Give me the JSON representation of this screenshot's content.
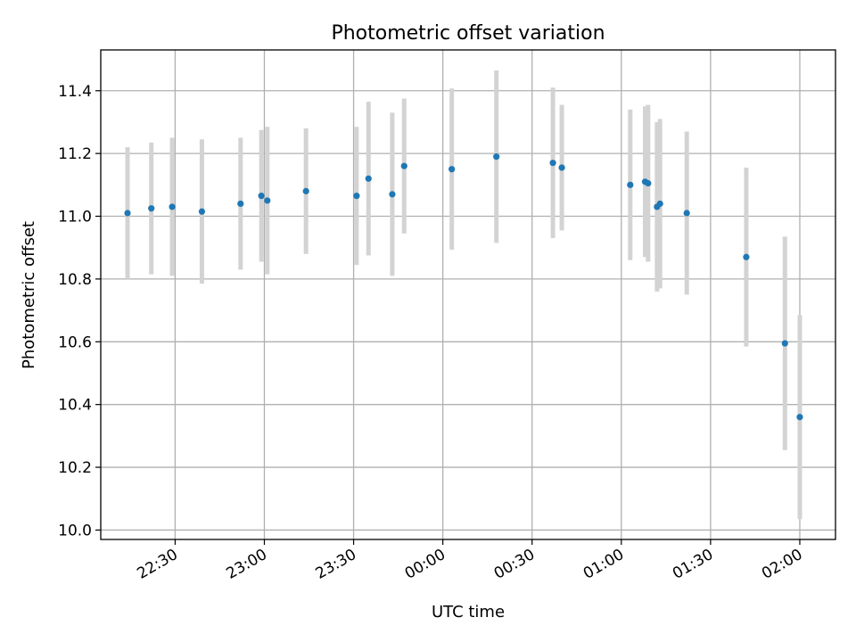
{
  "chart_data": {
    "type": "scatter",
    "title": "Photometric offset variation",
    "xlabel": "UTC time",
    "ylabel": "Photometric offset",
    "x_unit": "UTC time (HH:MM)",
    "xlim": [
      "22:05",
      "02:12"
    ],
    "ylim": [
      9.97,
      11.53
    ],
    "grid": true,
    "x_ticks": [
      "22:30",
      "23:00",
      "23:30",
      "00:00",
      "00:30",
      "01:00",
      "01:30",
      "02:00"
    ],
    "y_ticks": [
      "10.0",
      "10.2",
      "10.4",
      "10.6",
      "10.8",
      "11.0",
      "11.2",
      "11.4"
    ],
    "series": [
      {
        "marker_color": "#1f77b4",
        "errorbar_color": "#d3d3d3",
        "points": [
          {
            "x": "22:14",
            "y": 11.01,
            "err": 0.21
          },
          {
            "x": "22:22",
            "y": 11.025,
            "err": 0.21
          },
          {
            "x": "22:29",
            "y": 11.03,
            "err": 0.22
          },
          {
            "x": "22:39",
            "y": 11.015,
            "err": 0.23
          },
          {
            "x": "22:52",
            "y": 11.04,
            "err": 0.21
          },
          {
            "x": "22:59",
            "y": 11.065,
            "err": 0.21
          },
          {
            "x": "23:01",
            "y": 11.05,
            "err": 0.235
          },
          {
            "x": "23:14",
            "y": 11.08,
            "err": 0.2
          },
          {
            "x": "23:31",
            "y": 11.065,
            "err": 0.22
          },
          {
            "x": "23:35",
            "y": 11.12,
            "err": 0.245
          },
          {
            "x": "23:43",
            "y": 11.07,
            "err": 0.26
          },
          {
            "x": "23:47",
            "y": 11.16,
            "err": 0.215
          },
          {
            "x": "00:03",
            "y": 11.15,
            "err": 0.257
          },
          {
            "x": "00:18",
            "y": 11.19,
            "err": 0.275
          },
          {
            "x": "00:37",
            "y": 11.17,
            "err": 0.24
          },
          {
            "x": "00:40",
            "y": 11.155,
            "err": 0.2
          },
          {
            "x": "01:03",
            "y": 11.1,
            "err": 0.24
          },
          {
            "x": "01:08",
            "y": 11.11,
            "err": 0.24
          },
          {
            "x": "01:09",
            "y": 11.105,
            "err": 0.25
          },
          {
            "x": "01:12",
            "y": 11.03,
            "err": 0.27
          },
          {
            "x": "01:13",
            "y": 11.04,
            "err": 0.27
          },
          {
            "x": "01:22",
            "y": 11.01,
            "err": 0.26
          },
          {
            "x": "01:42",
            "y": 10.87,
            "err": 0.285
          },
          {
            "x": "01:55",
            "y": 10.595,
            "err": 0.34
          },
          {
            "x": "02:00",
            "y": 10.36,
            "err": 0.325
          }
        ]
      }
    ]
  }
}
